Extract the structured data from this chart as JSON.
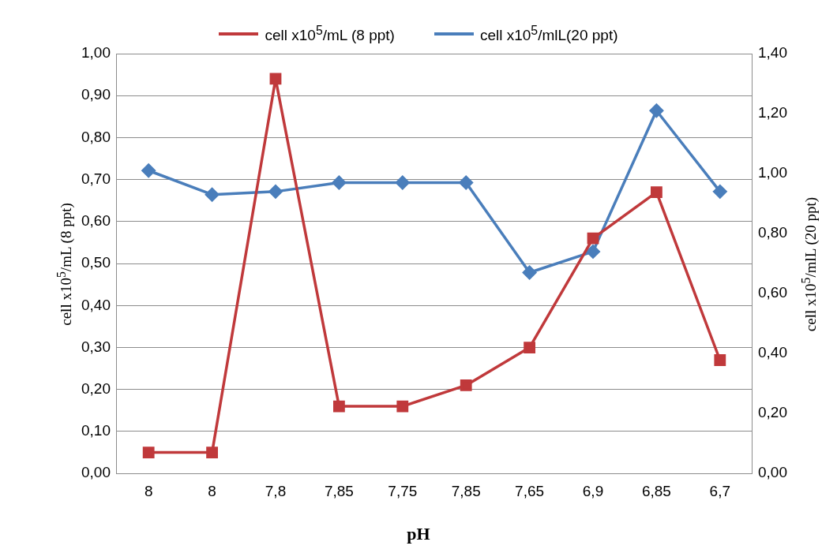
{
  "chart_data": {
    "type": "line",
    "xlabel": "pH",
    "ylabel": "cell x10$^{5}$/mL (8 ppt)",
    "y2label": "cell x10$^{5}$/mlL (20 ppt)",
    "categories": [
      "8",
      "8",
      "7,8",
      "7,85",
      "7,75",
      "7,85",
      "7,65",
      "6,9",
      "6,85",
      "6,7"
    ],
    "series": [
      {
        "name": "cell x10$^{5}$/mL (8 ppt)",
        "color": "#c0393b",
        "marker": "square",
        "values": [
          0.05,
          0.05,
          0.94,
          0.16,
          0.16,
          0.21,
          0.3,
          0.56,
          0.67,
          0.27
        ]
      },
      {
        "name": "cell x10$^{5}$/mlL(20 ppt)",
        "color": "#4a7ebb",
        "marker": "diamond",
        "axis": "y2",
        "values": [
          1.01,
          0.93,
          0.94,
          0.97,
          0.97,
          0.97,
          0.67,
          0.74,
          1.21,
          0.94
        ]
      }
    ],
    "ylim": [
      0,
      1
    ],
    "yticks": [
      {
        "value": 0,
        "label": "0,00"
      },
      {
        "value": 0.1,
        "label": "0,10"
      },
      {
        "value": 0.2,
        "label": "0,20"
      },
      {
        "value": 0.3,
        "label": "0,30"
      },
      {
        "value": 0.4,
        "label": "0,40"
      },
      {
        "value": 0.5,
        "label": "0,50"
      },
      {
        "value": 0.6,
        "label": "0,60"
      },
      {
        "value": 0.7,
        "label": "0,70"
      },
      {
        "value": 0.8,
        "label": "0,80"
      },
      {
        "value": 0.9,
        "label": "0,90"
      },
      {
        "value": 1,
        "label": "1,00"
      }
    ],
    "y2lim": [
      0,
      1.4
    ],
    "y2ticks": [
      {
        "value": 0,
        "label": "0,00"
      },
      {
        "value": 0.2,
        "label": "0,20"
      },
      {
        "value": 0.4,
        "label": "0,40"
      },
      {
        "value": 0.6,
        "label": "0,60"
      },
      {
        "value": 0.8,
        "label": "0,80"
      },
      {
        "value": 1,
        "label": "1,00"
      },
      {
        "value": 1.2,
        "label": "1,20"
      },
      {
        "value": 1.4,
        "label": "1,40"
      }
    ],
    "grid": "y",
    "legend": "top",
    "line_style": "solid"
  }
}
